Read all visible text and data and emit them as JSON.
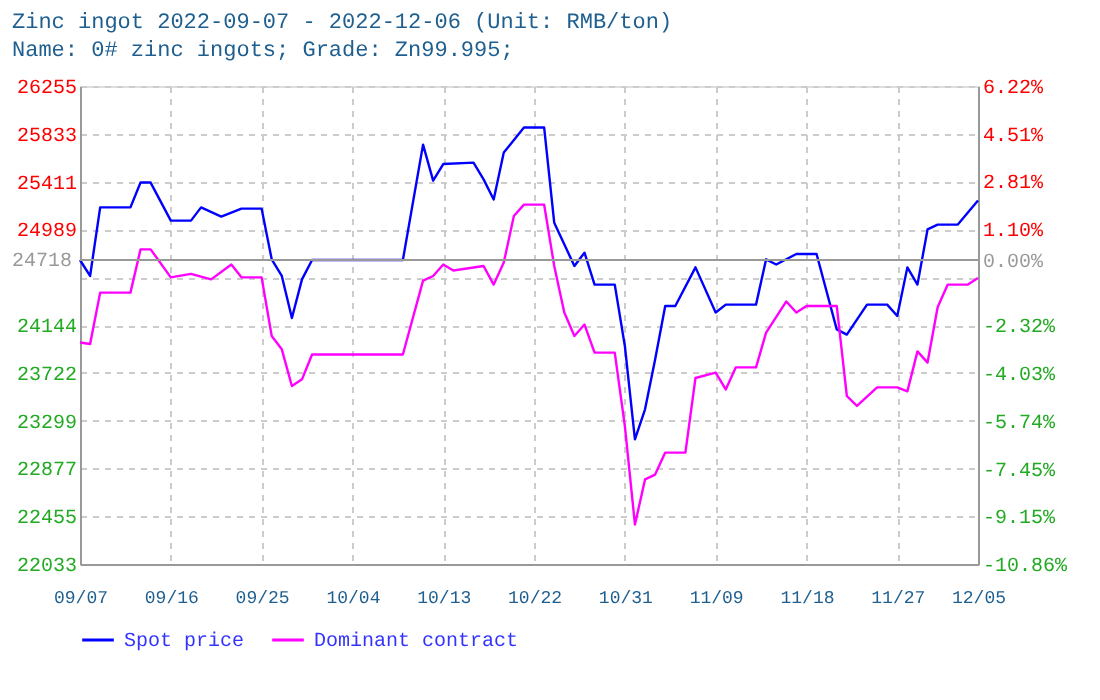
{
  "chart_data": {
    "type": "line",
    "title": "Zinc ingot 2022-09-07 - 2022-12-06   (Unit: RMB/ton)",
    "subtitle": "Name: 0# zinc ingots; Grade: Zn99.995;",
    "xlim": [
      "2022-09-07",
      "2022-12-05"
    ],
    "xticks": [
      {
        "value": "2022-09-07",
        "label": "09/07"
      },
      {
        "value": "2022-09-16",
        "label": "09/16"
      },
      {
        "value": "2022-09-25",
        "label": "09/25"
      },
      {
        "value": "2022-10-04",
        "label": "10/04"
      },
      {
        "value": "2022-10-13",
        "label": "10/13"
      },
      {
        "value": "2022-10-22",
        "label": "10/22"
      },
      {
        "value": "2022-10-31",
        "label": "10/31"
      },
      {
        "value": "2022-11-09",
        "label": "11/09"
      },
      {
        "value": "2022-11-18",
        "label": "11/18"
      },
      {
        "value": "2022-11-27",
        "label": "11/27"
      },
      {
        "value": "2022-12-05",
        "label": "12/05"
      }
    ],
    "ylim": [
      22033,
      26255
    ],
    "yticks": [
      22033,
      22455,
      22877,
      23299,
      23722,
      24144,
      {
        "value": 24567,
        "label": null
      },
      24989,
      25411,
      25833,
      26255
    ],
    "y2lim": [
      -10.86,
      6.22
    ],
    "y2ticks": [
      {
        "value": -10.86,
        "label": "-10.86%"
      },
      {
        "value": -9.15,
        "label": "-9.15%"
      },
      {
        "value": -7.45,
        "label": "-7.45%"
      },
      {
        "value": -5.74,
        "label": "-5.74%"
      },
      {
        "value": -4.03,
        "label": "-4.03%"
      },
      {
        "value": -2.32,
        "label": "-2.32%"
      },
      {
        "value": -0.61,
        "label": null
      },
      {
        "value": 0,
        "label": "0.00%"
      },
      {
        "value": 1.1,
        "label": "1.10%"
      },
      {
        "value": 2.81,
        "label": "2.81%"
      },
      {
        "value": 4.51,
        "label": "4.51%"
      },
      {
        "value": 6.22,
        "label": "6.22%"
      }
    ],
    "ref_lines": [
      {
        "axis": "y",
        "value": 24718,
        "label": "24718",
        "color": "#999999"
      }
    ],
    "grid": true,
    "legend": "bottom",
    "line_style": "solid",
    "marker": "none",
    "series": [
      {
        "name": "Spot price",
        "color": "#0000ff",
        "x": [
          "2022-09-07",
          "2022-09-08",
          "2022-09-09",
          "2022-09-12",
          "2022-09-13",
          "2022-09-14",
          "2022-09-16",
          "2022-09-18",
          "2022-09-19",
          "2022-09-21",
          "2022-09-23",
          "2022-09-25",
          "2022-09-26",
          "2022-09-27",
          "2022-09-28",
          "2022-09-29",
          "2022-09-30",
          "2022-10-09",
          "2022-10-11",
          "2022-10-12",
          "2022-10-13",
          "2022-10-16",
          "2022-10-17",
          "2022-10-18",
          "2022-10-19",
          "2022-10-21",
          "2022-10-23",
          "2022-10-24",
          "2022-10-26",
          "2022-10-27",
          "2022-10-28",
          "2022-10-30",
          "2022-10-31",
          "2022-11-01",
          "2022-11-02",
          "2022-11-03",
          "2022-11-04",
          "2022-11-05",
          "2022-11-07",
          "2022-11-09",
          "2022-11-10",
          "2022-11-13",
          "2022-11-14",
          "2022-11-15",
          "2022-11-17",
          "2022-11-19",
          "2022-11-21",
          "2022-11-22",
          "2022-11-24",
          "2022-11-26",
          "2022-11-27",
          "2022-11-28",
          "2022-11-29",
          "2022-11-30",
          "2022-12-01",
          "2022-12-03",
          "2022-12-05"
        ],
        "values": [
          24718,
          24577,
          25183,
          25183,
          25402,
          25402,
          25066,
          25066,
          25183,
          25102,
          25172,
          25172,
          24724,
          24577,
          24206,
          24547,
          24718,
          24718,
          25737,
          25419,
          25566,
          25578,
          25430,
          25253,
          25667,
          25889,
          25889,
          25048,
          24665,
          24783,
          24501,
          24501,
          23959,
          23134,
          23399,
          23840,
          24312,
          24312,
          24653,
          24254,
          24324,
          24324,
          24724,
          24678,
          24771,
          24771,
          24105,
          24059,
          24324,
          24324,
          24224,
          24653,
          24501,
          24988,
          25031,
          25031,
          25243
        ]
      },
      {
        "name": "Dominant contract",
        "color": "#ff00ff",
        "x": [
          "2022-09-07",
          "2022-09-08",
          "2022-09-09",
          "2022-09-12",
          "2022-09-13",
          "2022-09-14",
          "2022-09-16",
          "2022-09-18",
          "2022-09-20",
          "2022-09-22",
          "2022-09-23",
          "2022-09-25",
          "2022-09-26",
          "2022-09-27",
          "2022-09-28",
          "2022-09-29",
          "2022-09-30",
          "2022-10-09",
          "2022-10-11",
          "2022-10-12",
          "2022-10-13",
          "2022-10-14",
          "2022-10-17",
          "2022-10-18",
          "2022-10-19",
          "2022-10-20",
          "2022-10-21",
          "2022-10-23",
          "2022-10-24",
          "2022-10-25",
          "2022-10-26",
          "2022-10-27",
          "2022-10-28",
          "2022-10-30",
          "2022-10-31",
          "2022-11-01",
          "2022-11-02",
          "2022-11-03",
          "2022-11-04",
          "2022-11-06",
          "2022-11-07",
          "2022-11-09",
          "2022-11-10",
          "2022-11-11",
          "2022-11-13",
          "2022-11-14",
          "2022-11-16",
          "2022-11-17",
          "2022-11-18",
          "2022-11-21",
          "2022-11-22",
          "2022-11-23",
          "2022-11-25",
          "2022-11-27",
          "2022-11-28",
          "2022-11-29",
          "2022-11-30",
          "2022-12-01",
          "2022-12-02",
          "2022-12-04",
          "2022-12-05"
        ],
        "values": [
          23989,
          23976,
          24430,
          24430,
          24812,
          24812,
          24565,
          24595,
          24547,
          24678,
          24565,
          24565,
          24047,
          23929,
          23605,
          23664,
          23883,
          23883,
          24536,
          24577,
          24678,
          24625,
          24665,
          24501,
          24695,
          25107,
          25207,
          25207,
          24665,
          24254,
          24047,
          24148,
          23900,
          23900,
          23252,
          22381,
          22780,
          22823,
          23017,
          23017,
          23676,
          23724,
          23575,
          23770,
          23770,
          24077,
          24352,
          24254,
          24312,
          24312,
          23517,
          23429,
          23593,
          23593,
          23558,
          23911,
          23812,
          24300,
          24501,
          24501,
          24559
        ]
      }
    ]
  }
}
